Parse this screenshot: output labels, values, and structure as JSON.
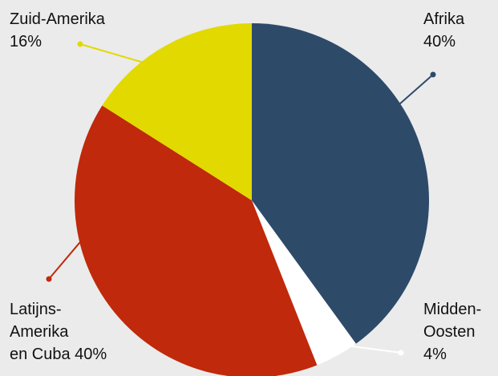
{
  "chart_data": {
    "type": "pie",
    "start_angle_deg": 0,
    "direction": "clockwise",
    "slices": [
      {
        "label_lines": [
          "Afrika",
          "40%"
        ],
        "value": 40,
        "color": "#2e4a69"
      },
      {
        "label_lines": [
          "Midden-",
          "Oosten",
          "4%"
        ],
        "value": 4,
        "color": "#ffffff"
      },
      {
        "label_lines": [
          "Latijns-",
          "Amerika",
          "en Cuba 40%"
        ],
        "value": 40,
        "color": "#c0290b"
      },
      {
        "label_lines": [
          "Zuid-Amerika",
          "16%"
        ],
        "value": 16,
        "color": "#e2d900"
      }
    ]
  }
}
